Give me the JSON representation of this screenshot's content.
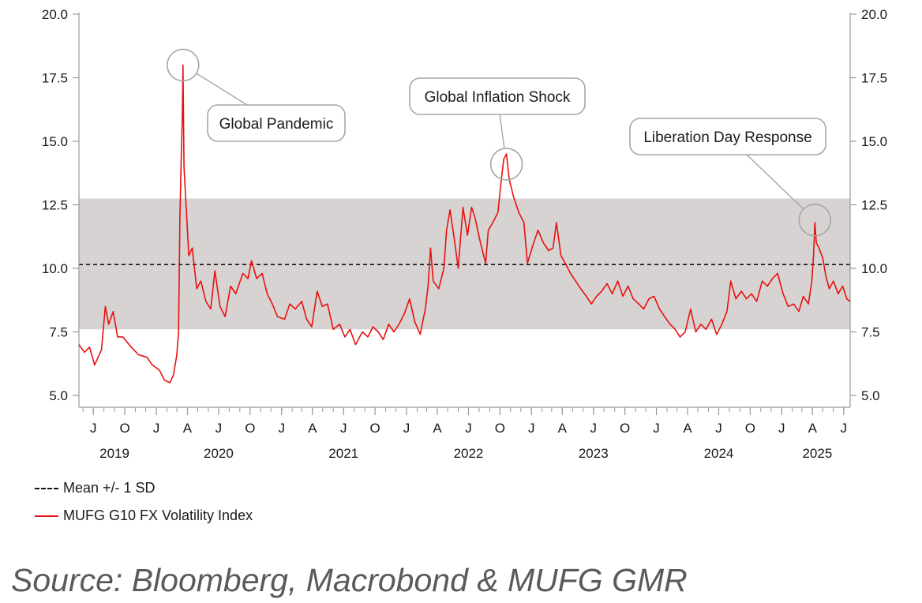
{
  "chart_data": {
    "type": "line",
    "title": "",
    "xlabel": "",
    "ylabel": "",
    "ylim": [
      5.0,
      20.0
    ],
    "y_ticks": [
      "5.0",
      "7.5",
      "10.0",
      "12.5",
      "15.0",
      "17.5",
      "20.0"
    ],
    "x_range": [
      "2019-05-20",
      "2025-07-20"
    ],
    "month_ticks": [
      {
        "label": "J",
        "date": "2019-07-01"
      },
      {
        "label": "O",
        "date": "2019-10-01"
      },
      {
        "label": "J",
        "date": "2020-01-01"
      },
      {
        "label": "A",
        "date": "2020-04-01"
      },
      {
        "label": "J",
        "date": "2020-07-01"
      },
      {
        "label": "O",
        "date": "2020-10-01"
      },
      {
        "label": "J",
        "date": "2021-01-01"
      },
      {
        "label": "A",
        "date": "2021-04-01"
      },
      {
        "label": "J",
        "date": "2021-07-01"
      },
      {
        "label": "O",
        "date": "2021-10-01"
      },
      {
        "label": "J",
        "date": "2022-01-01"
      },
      {
        "label": "A",
        "date": "2022-04-01"
      },
      {
        "label": "J",
        "date": "2022-07-01"
      },
      {
        "label": "O",
        "date": "2022-10-01"
      },
      {
        "label": "J",
        "date": "2023-01-01"
      },
      {
        "label": "A",
        "date": "2023-04-01"
      },
      {
        "label": "J",
        "date": "2023-07-01"
      },
      {
        "label": "O",
        "date": "2023-10-01"
      },
      {
        "label": "J",
        "date": "2024-01-01"
      },
      {
        "label": "A",
        "date": "2024-04-01"
      },
      {
        "label": "J",
        "date": "2024-07-01"
      },
      {
        "label": "O",
        "date": "2024-10-01"
      },
      {
        "label": "J",
        "date": "2025-01-01"
      },
      {
        "label": "A",
        "date": "2025-04-01"
      },
      {
        "label": "J",
        "date": "2025-07-01"
      }
    ],
    "year_labels": [
      {
        "label": "2019",
        "date": "2019-09-01"
      },
      {
        "label": "2020",
        "date": "2020-07-01"
      },
      {
        "label": "2021",
        "date": "2021-07-01"
      },
      {
        "label": "2022",
        "date": "2022-07-01"
      },
      {
        "label": "2023",
        "date": "2023-07-01"
      },
      {
        "label": "2024",
        "date": "2024-07-01"
      },
      {
        "label": "2025",
        "date": "2025-04-15"
      }
    ],
    "mean": 10.15,
    "band": [
      7.6,
      12.75
    ],
    "series": [
      {
        "name": "MUFG G10 FX Volatility Index",
        "color": "#e8110f",
        "points": [
          [
            "2019-05-20",
            7.0
          ],
          [
            "2019-06-05",
            6.7
          ],
          [
            "2019-06-20",
            6.9
          ],
          [
            "2019-07-05",
            6.2
          ],
          [
            "2019-07-25",
            6.8
          ],
          [
            "2019-08-05",
            8.5
          ],
          [
            "2019-08-15",
            7.8
          ],
          [
            "2019-08-28",
            8.3
          ],
          [
            "2019-09-10",
            7.3
          ],
          [
            "2019-09-25",
            7.3
          ],
          [
            "2019-10-20",
            6.9
          ],
          [
            "2019-11-10",
            6.6
          ],
          [
            "2019-12-05",
            6.5
          ],
          [
            "2019-12-20",
            6.2
          ],
          [
            "2020-01-10",
            6.0
          ],
          [
            "2020-01-25",
            5.6
          ],
          [
            "2020-02-10",
            5.5
          ],
          [
            "2020-02-20",
            5.8
          ],
          [
            "2020-03-01",
            6.6
          ],
          [
            "2020-03-06",
            7.5
          ],
          [
            "2020-03-10",
            12.0
          ],
          [
            "2020-03-14",
            14.5
          ],
          [
            "2020-03-17",
            16.0
          ],
          [
            "2020-03-19",
            18.0
          ],
          [
            "2020-03-22",
            14.0
          ],
          [
            "2020-03-28",
            12.5
          ],
          [
            "2020-04-05",
            10.5
          ],
          [
            "2020-04-15",
            10.8
          ],
          [
            "2020-04-28",
            9.2
          ],
          [
            "2020-05-10",
            9.5
          ],
          [
            "2020-05-25",
            8.7
          ],
          [
            "2020-06-08",
            8.4
          ],
          [
            "2020-06-20",
            9.9
          ],
          [
            "2020-07-05",
            8.5
          ],
          [
            "2020-07-20",
            8.1
          ],
          [
            "2020-08-05",
            9.3
          ],
          [
            "2020-08-20",
            9.0
          ],
          [
            "2020-09-10",
            9.8
          ],
          [
            "2020-09-25",
            9.6
          ],
          [
            "2020-10-05",
            10.3
          ],
          [
            "2020-10-20",
            9.6
          ],
          [
            "2020-11-05",
            9.8
          ],
          [
            "2020-11-20",
            9.0
          ],
          [
            "2020-12-05",
            8.6
          ],
          [
            "2020-12-20",
            8.1
          ],
          [
            "2021-01-10",
            8.0
          ],
          [
            "2021-01-25",
            8.6
          ],
          [
            "2021-02-10",
            8.4
          ],
          [
            "2021-03-01",
            8.7
          ],
          [
            "2021-03-15",
            8.0
          ],
          [
            "2021-03-30",
            7.7
          ],
          [
            "2021-04-15",
            9.1
          ],
          [
            "2021-04-30",
            8.5
          ],
          [
            "2021-05-15",
            8.6
          ],
          [
            "2021-06-01",
            7.6
          ],
          [
            "2021-06-20",
            7.8
          ],
          [
            "2021-07-05",
            7.3
          ],
          [
            "2021-07-20",
            7.6
          ],
          [
            "2021-08-05",
            7.0
          ],
          [
            "2021-08-25",
            7.5
          ],
          [
            "2021-09-10",
            7.3
          ],
          [
            "2021-09-25",
            7.7
          ],
          [
            "2021-10-10",
            7.5
          ],
          [
            "2021-10-25",
            7.2
          ],
          [
            "2021-11-10",
            7.8
          ],
          [
            "2021-11-25",
            7.5
          ],
          [
            "2021-12-10",
            7.8
          ],
          [
            "2021-12-25",
            8.2
          ],
          [
            "2022-01-10",
            8.8
          ],
          [
            "2022-01-25",
            7.9
          ],
          [
            "2022-02-10",
            7.4
          ],
          [
            "2022-02-25",
            8.4
          ],
          [
            "2022-03-05",
            9.3
          ],
          [
            "2022-03-12",
            10.8
          ],
          [
            "2022-03-20",
            9.5
          ],
          [
            "2022-04-05",
            9.2
          ],
          [
            "2022-04-20",
            10.0
          ],
          [
            "2022-04-28",
            11.5
          ],
          [
            "2022-05-08",
            12.3
          ],
          [
            "2022-05-20",
            11.2
          ],
          [
            "2022-06-01",
            10.0
          ],
          [
            "2022-06-15",
            12.4
          ],
          [
            "2022-06-28",
            11.3
          ],
          [
            "2022-07-10",
            12.4
          ],
          [
            "2022-07-20",
            12.0
          ],
          [
            "2022-08-05",
            11.0
          ],
          [
            "2022-08-20",
            10.2
          ],
          [
            "2022-08-28",
            11.5
          ],
          [
            "2022-09-10",
            11.8
          ],
          [
            "2022-09-25",
            12.2
          ],
          [
            "2022-10-05",
            13.5
          ],
          [
            "2022-10-12",
            14.3
          ],
          [
            "2022-10-20",
            14.5
          ],
          [
            "2022-10-28",
            13.5
          ],
          [
            "2022-11-10",
            12.8
          ],
          [
            "2022-11-25",
            12.2
          ],
          [
            "2022-12-10",
            11.8
          ],
          [
            "2022-12-20",
            10.2
          ],
          [
            "2023-01-05",
            10.9
          ],
          [
            "2023-01-20",
            11.5
          ],
          [
            "2023-02-05",
            11.0
          ],
          [
            "2023-02-20",
            10.7
          ],
          [
            "2023-03-05",
            10.8
          ],
          [
            "2023-03-15",
            11.8
          ],
          [
            "2023-03-28",
            10.5
          ],
          [
            "2023-04-10",
            10.2
          ],
          [
            "2023-04-25",
            9.8
          ],
          [
            "2023-05-10",
            9.5
          ],
          [
            "2023-05-25",
            9.2
          ],
          [
            "2023-06-10",
            8.9
          ],
          [
            "2023-06-25",
            8.6
          ],
          [
            "2023-07-10",
            8.9
          ],
          [
            "2023-07-25",
            9.1
          ],
          [
            "2023-08-10",
            9.4
          ],
          [
            "2023-08-25",
            9.0
          ],
          [
            "2023-09-10",
            9.5
          ],
          [
            "2023-09-25",
            8.9
          ],
          [
            "2023-10-10",
            9.3
          ],
          [
            "2023-10-25",
            8.8
          ],
          [
            "2023-11-10",
            8.6
          ],
          [
            "2023-11-25",
            8.4
          ],
          [
            "2023-12-10",
            8.8
          ],
          [
            "2023-12-25",
            8.9
          ],
          [
            "2024-01-10",
            8.4
          ],
          [
            "2024-01-25",
            8.1
          ],
          [
            "2024-02-10",
            7.8
          ],
          [
            "2024-02-25",
            7.6
          ],
          [
            "2024-03-10",
            7.3
          ],
          [
            "2024-03-25",
            7.5
          ],
          [
            "2024-04-10",
            8.4
          ],
          [
            "2024-04-25",
            7.5
          ],
          [
            "2024-05-10",
            7.8
          ],
          [
            "2024-05-25",
            7.6
          ],
          [
            "2024-06-10",
            8.0
          ],
          [
            "2024-06-25",
            7.4
          ],
          [
            "2024-07-10",
            7.8
          ],
          [
            "2024-07-25",
            8.3
          ],
          [
            "2024-08-05",
            9.5
          ],
          [
            "2024-08-20",
            8.8
          ],
          [
            "2024-09-05",
            9.1
          ],
          [
            "2024-09-20",
            8.8
          ],
          [
            "2024-10-05",
            9.0
          ],
          [
            "2024-10-20",
            8.7
          ],
          [
            "2024-11-05",
            9.5
          ],
          [
            "2024-11-20",
            9.3
          ],
          [
            "2024-12-05",
            9.6
          ],
          [
            "2024-12-20",
            9.8
          ],
          [
            "2025-01-05",
            9.0
          ],
          [
            "2025-01-20",
            8.5
          ],
          [
            "2025-02-05",
            8.6
          ],
          [
            "2025-02-20",
            8.3
          ],
          [
            "2025-03-05",
            8.9
          ],
          [
            "2025-03-20",
            8.6
          ],
          [
            "2025-03-30",
            9.5
          ],
          [
            "2025-04-04",
            10.5
          ],
          [
            "2025-04-08",
            11.8
          ],
          [
            "2025-04-12",
            11.0
          ],
          [
            "2025-04-20",
            10.8
          ],
          [
            "2025-05-01",
            10.4
          ],
          [
            "2025-05-10",
            9.7
          ],
          [
            "2025-05-20",
            9.2
          ],
          [
            "2025-06-01",
            9.5
          ],
          [
            "2025-06-15",
            9.0
          ],
          [
            "2025-06-28",
            9.3
          ],
          [
            "2025-07-10",
            8.8
          ],
          [
            "2025-07-20",
            8.7
          ]
        ]
      }
    ],
    "annotations": [
      {
        "text": "Global Pandemic",
        "date": "2020-03-19",
        "value": 18.0
      },
      {
        "text": "Global Inflation Shock",
        "date": "2022-10-20",
        "value": 14.1
      },
      {
        "text": "Liberation Day Response",
        "date": "2025-04-08",
        "value": 11.9
      }
    ],
    "legend": {
      "mean_label": "Mean +/- 1 SD",
      "series_label": "MUFG G10 FX Volatility Index"
    }
  },
  "source": "Source: Bloomberg, Macrobond & MUFG GMR"
}
